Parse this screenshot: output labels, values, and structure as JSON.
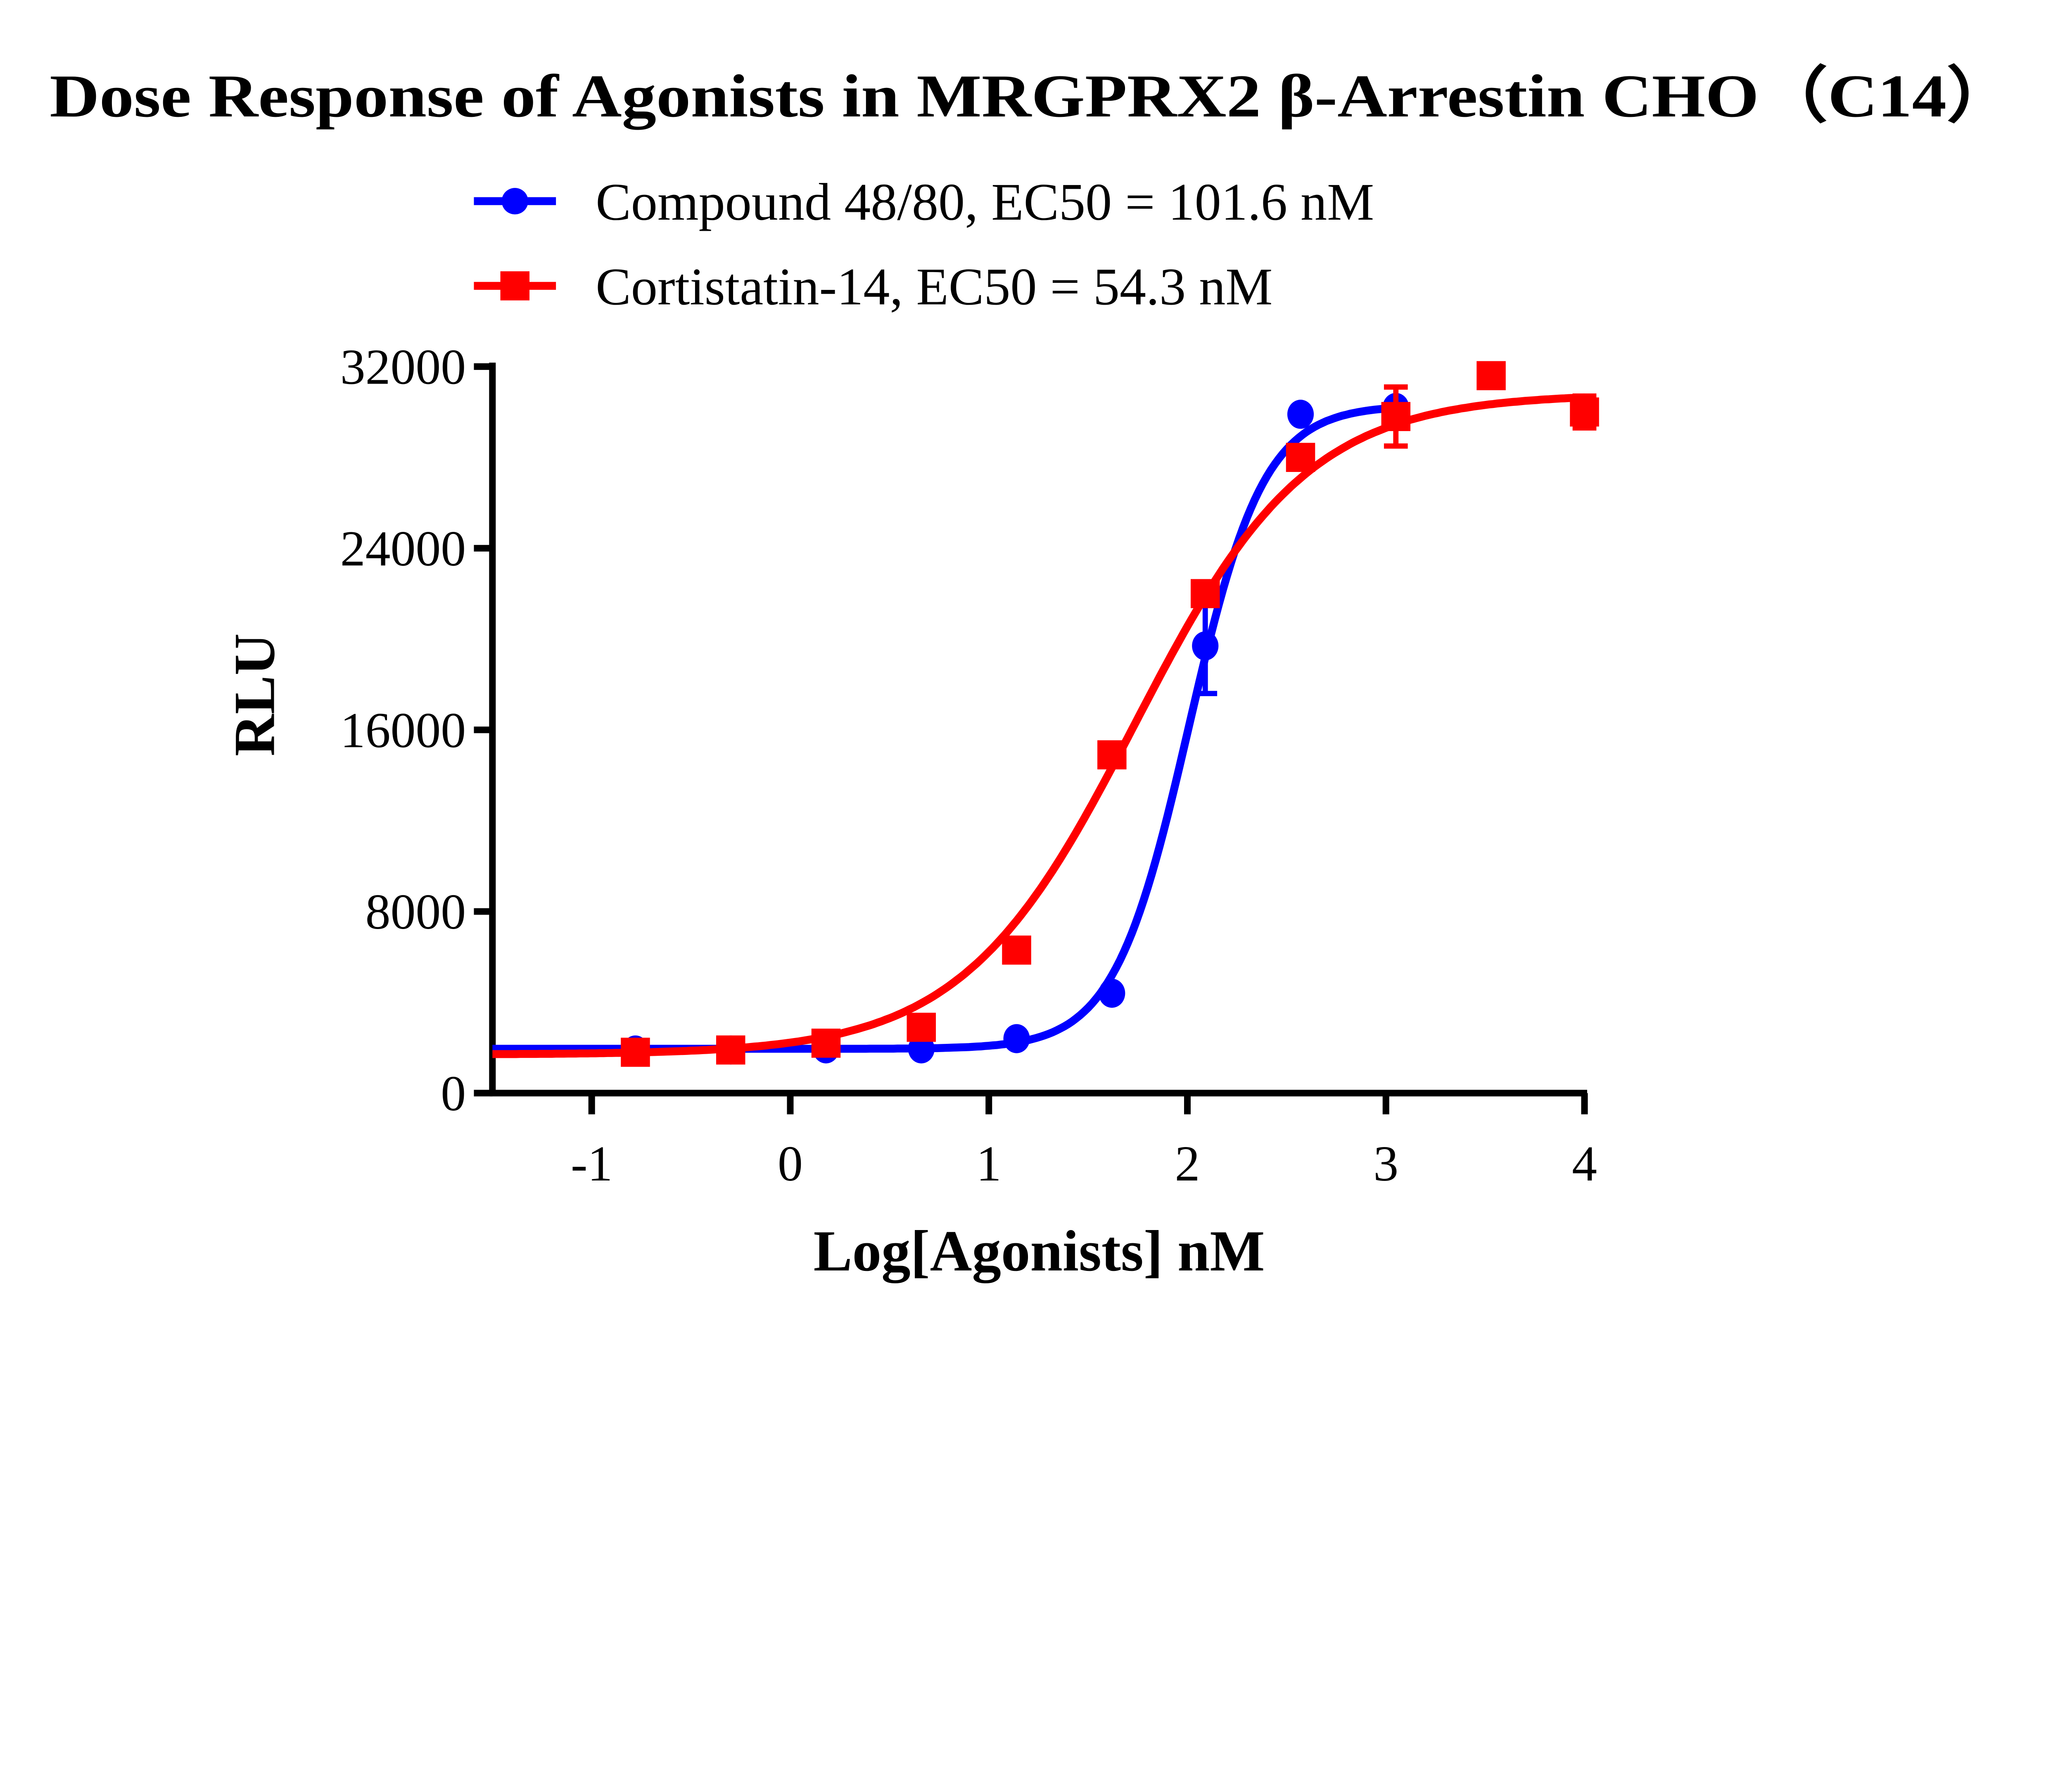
{
  "chart_data": {
    "type": "line",
    "title": "Dose Response of Agonists in MRGPRX2 β-Arrestin CHO（C14）",
    "xlabel": "Log[Agonists] nM",
    "ylabel": "RLU",
    "xlim": [
      -1.5,
      4
    ],
    "ylim": [
      0,
      32000
    ],
    "xticks": [
      -1,
      0,
      1,
      2,
      3,
      4
    ],
    "yticks": [
      0,
      8000,
      16000,
      24000,
      32000
    ],
    "legend_position": "top",
    "grid": false,
    "series": [
      {
        "name": "Compound 48/80, EC50 = 101.6 nM",
        "color": "#0000ff",
        "marker": "circle",
        "x": [
          -0.78,
          -0.3,
          0.18,
          0.66,
          1.14,
          1.62,
          2.09,
          2.57,
          3.05
        ],
        "y": [
          1900,
          1900,
          1950,
          1950,
          2400,
          4400,
          19700,
          29900,
          30200
        ],
        "err": [
          0,
          0,
          0,
          0,
          0,
          0,
          2100,
          0,
          0
        ],
        "fit": {
          "bottom": 1950,
          "top": 30300,
          "logEC50": 2.007,
          "hill": 2.3
        }
      },
      {
        "name": "Cortistatin-14, EC50 = 54.3 nM",
        "color": "#ff0000",
        "marker": "square",
        "x": [
          -0.78,
          -0.3,
          0.18,
          0.66,
          1.14,
          1.62,
          2.09,
          2.57,
          3.05,
          3.53,
          4.0
        ],
        "y": [
          1800,
          1900,
          2200,
          2900,
          6300,
          14900,
          22000,
          28000,
          29800,
          31600,
          30000
        ],
        "err": [
          0,
          0,
          0,
          0,
          0,
          300,
          0,
          0,
          1300,
          300,
          700
        ],
        "fit": {
          "bottom": 1700,
          "top": 30800,
          "logEC50": 1.735,
          "hill": 1.0
        }
      }
    ]
  }
}
